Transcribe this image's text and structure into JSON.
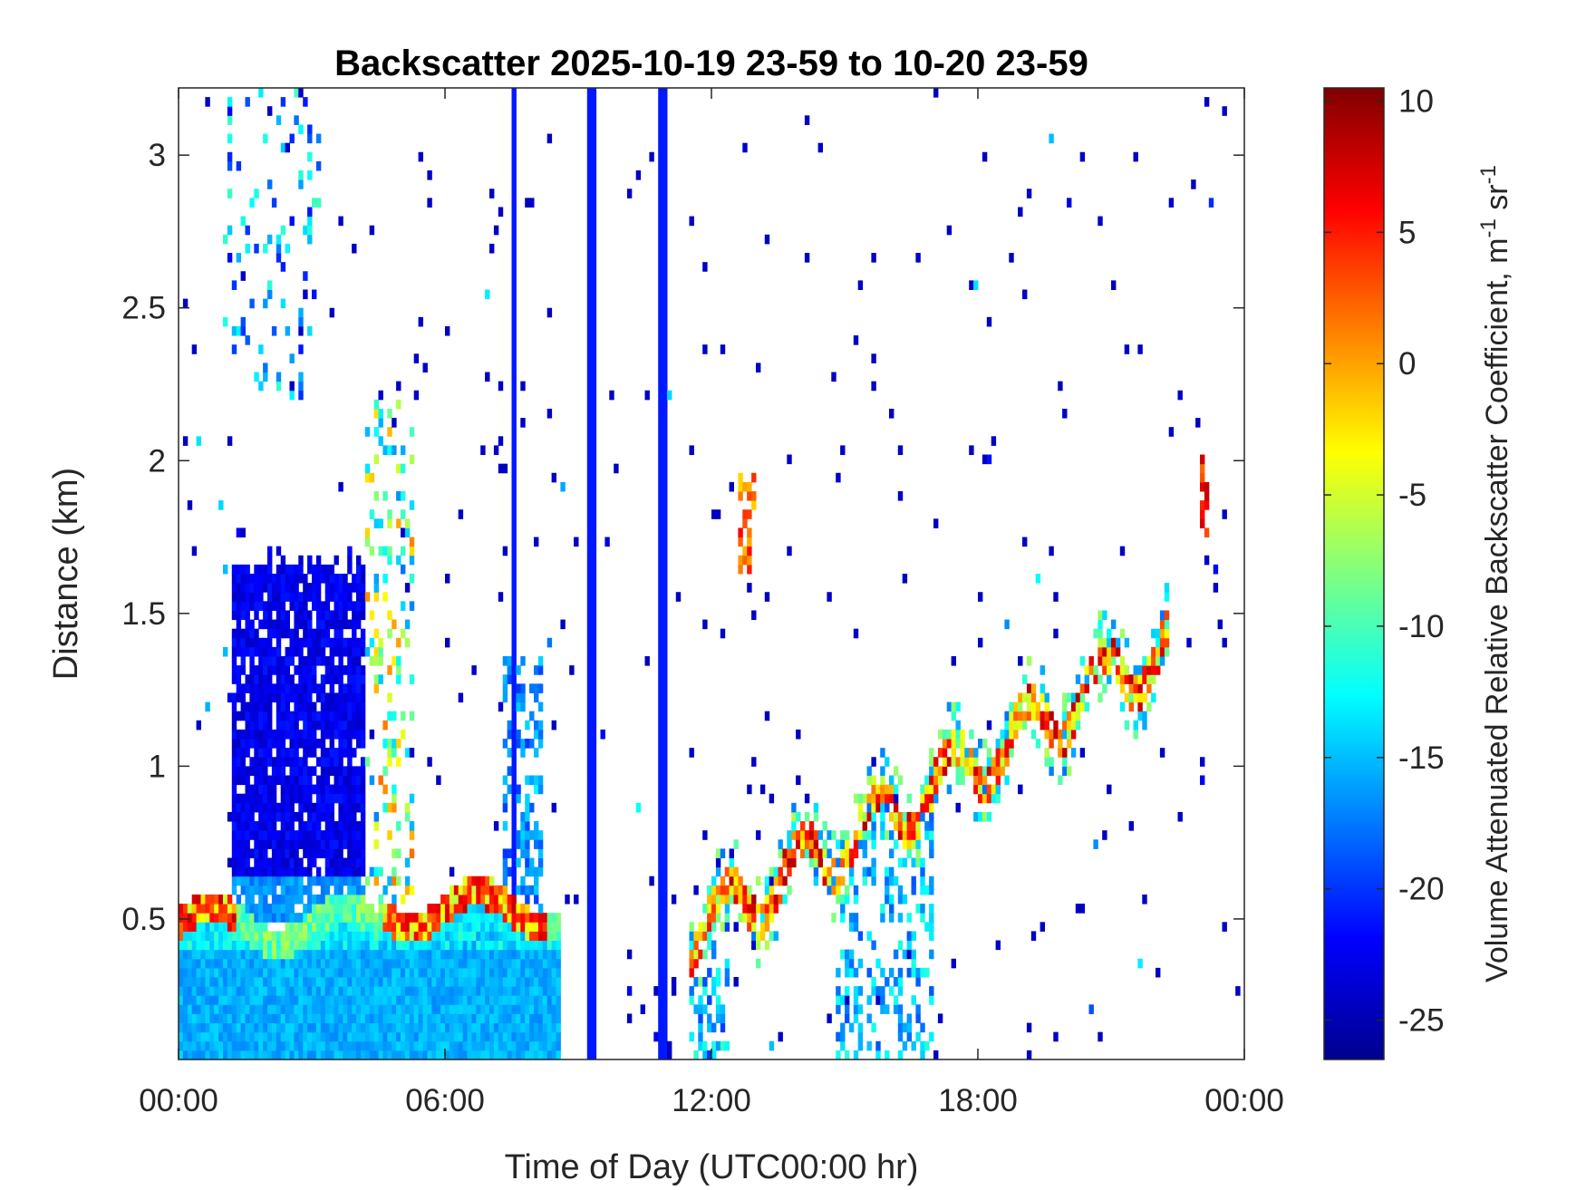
{
  "chart_data": {
    "type": "heatmap",
    "title": "Backscatter 2025-10-19 23-59 to 10-20 23-59",
    "xlabel": "Time of Day (UTC00:00 hr)",
    "ylabel": "Distance (km)",
    "x_tick_labels": [
      "00:00",
      "06:00",
      "12:00",
      "18:00",
      "00:00"
    ],
    "x_tick_hours": [
      0,
      6,
      12,
      18,
      24
    ],
    "xlim_hours": [
      0,
      24
    ],
    "y_ticks": [
      0.5,
      1,
      1.5,
      2,
      2.5,
      3
    ],
    "y_tick_labels": [
      "0.5",
      "1",
      "1.5",
      "2",
      "2.5",
      "3"
    ],
    "ylim_km": [
      0.04,
      3.22
    ],
    "colorbar": {
      "label": "Volume Attenuated Relative Backscatter Coefficient, m",
      "label_sup1": "-1",
      "label_mid": " sr",
      "label_sup2": "-1",
      "colormap": "jet",
      "clim": [
        -26.5,
        10.5
      ],
      "ticks": [
        10,
        5,
        0,
        -5,
        -10,
        -15,
        -20,
        -25
      ],
      "tick_labels": [
        "10",
        "5",
        "0",
        "-5",
        "-10",
        "-15",
        "-20",
        "-25"
      ]
    },
    "grid": false,
    "features": [
      {
        "name": "near-surface aerosol layer",
        "t_start": 0,
        "t_end": 8.5,
        "z_top_km": 0.5,
        "value_dB": -15
      },
      {
        "name": "high-return layer top",
        "t_start": 0,
        "t_end": 1.3,
        "z_km": 0.5,
        "value_dB": 5
      },
      {
        "name": "high-return layer top",
        "t_start": 4.8,
        "t_end": 8.3,
        "z_km": 0.5,
        "value_dB": 4
      },
      {
        "name": "residual layer",
        "t_start": 1.2,
        "t_end": 4.0,
        "z_bottom_km": 0.5,
        "z_top_km": 1.7,
        "value_dB": -23
      },
      {
        "name": "vertical streak",
        "t_hours": 7.55,
        "value_dB": -22
      },
      {
        "name": "vertical streak",
        "t_hours": 9.35,
        "value_dB": -21
      },
      {
        "name": "vertical streak",
        "t_hours": 10.95,
        "value_dB": -21
      },
      {
        "name": "rising boundary layer top",
        "t_start": 11.5,
        "t_end": 22.3,
        "z_start_km": 0.45,
        "z_end_km": 1.4,
        "value_dB": 5
      },
      {
        "name": "elevated layer",
        "t_start": 12.6,
        "t_end": 13.0,
        "z_start_km": 1.65,
        "z_end_km": 1.9,
        "value_dB": 3
      },
      {
        "name": "elevated layer",
        "t_start": 23.0,
        "t_end": 23.2,
        "z_start_km": 1.8,
        "z_end_km": 2.0,
        "value_dB": 5
      }
    ]
  }
}
